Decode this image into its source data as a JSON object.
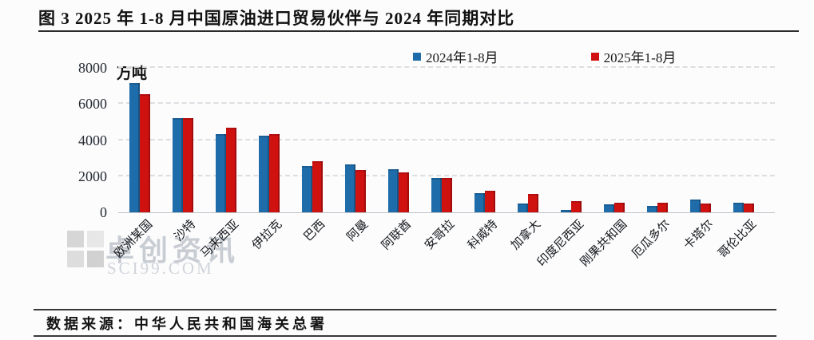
{
  "title": {
    "text": "图 3  2025 年 1-8 月中国原油进口贸易伙伴与 2024 年同期对比"
  },
  "legend": {
    "items": [
      {
        "label": "2024年1-8月",
        "color": "#1e6ca9"
      },
      {
        "label": "2025年1-8月",
        "color": "#cf1110"
      }
    ]
  },
  "axis": {
    "unit_label": "万吨",
    "y_ticks": [
      "8000",
      "6000",
      "4000",
      "2000",
      "0"
    ]
  },
  "chart_data": {
    "type": "bar",
    "title": "2025年1-8月中国原油进口贸易伙伴与2024年同期对比",
    "ylabel": "万吨",
    "ylim": [
      0,
      8000
    ],
    "grid": "horizontal dashed",
    "legend_position": "top",
    "categories": [
      "欧洲某国",
      "沙特",
      "马来西亚",
      "伊拉克",
      "巴西",
      "阿曼",
      "阿联酋",
      "安哥拉",
      "科威特",
      "加拿大",
      "印度尼西亚",
      "刚果共和国",
      "厄瓜多尔",
      "卡塔尔",
      "哥伦比亚"
    ],
    "series": [
      {
        "name": "2024年1-8月",
        "color": "#1e6ca9",
        "values": [
          7150,
          5200,
          4350,
          4250,
          2550,
          2650,
          2400,
          1900,
          1050,
          500,
          150,
          450,
          350,
          700,
          550
        ]
      },
      {
        "name": "2025年1-8月",
        "color": "#cf1110",
        "values": [
          6550,
          5200,
          4700,
          4350,
          2850,
          2350,
          2200,
          1900,
          1200,
          1000,
          600,
          550,
          550,
          500,
          470
        ]
      }
    ]
  },
  "watermark": {
    "brand": "卓创资讯",
    "domain": "SCI99.COM"
  },
  "footer": {
    "source": "数据来源：中华人民共和国海关总署"
  }
}
